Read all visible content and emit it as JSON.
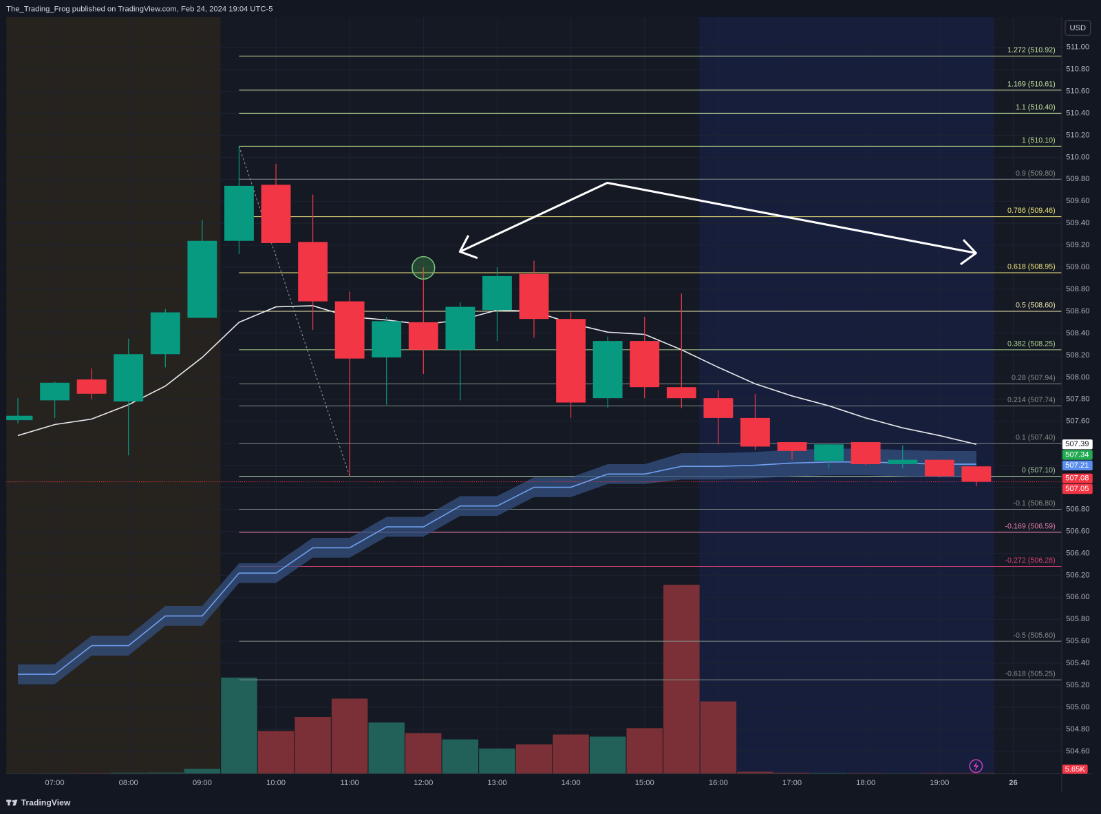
{
  "chart_data": {
    "type": "candlestick",
    "title": "The_Trading_Frog published on TradingView.com, Feb 24, 2024 19:04 UTC-5",
    "brand": "TradingView",
    "currency": "USD",
    "x": [
      6.5,
      7,
      7.5,
      8,
      8.5,
      9,
      9.5,
      10,
      10.5,
      11,
      11.5,
      12,
      12.5,
      13,
      13.5,
      14,
      14.5,
      15,
      15.5,
      16,
      16.5,
      17,
      17.5,
      18,
      18.5,
      19,
      19.5
    ],
    "open": [
      507.61,
      507.79,
      507.98,
      507.78,
      508.21,
      508.54,
      509.24,
      509.75,
      509.23,
      508.69,
      508.18,
      508.5,
      508.25,
      508.61,
      508.94,
      508.53,
      507.81,
      508.33,
      507.91,
      507.81,
      507.63,
      507.41,
      507.24,
      507.41,
      507.21,
      507.25,
      507.19
    ],
    "high": [
      507.81,
      507.96,
      508.08,
      508.35,
      508.62,
      509.43,
      510.1,
      509.94,
      509.66,
      508.78,
      508.55,
      509.0,
      508.68,
      509.0,
      509.06,
      508.59,
      508.37,
      508.55,
      508.76,
      507.88,
      507.85,
      507.41,
      507.39,
      507.41,
      507.38,
      507.25,
      507.19
    ],
    "low": [
      507.58,
      507.63,
      507.8,
      507.29,
      508.09,
      508.54,
      509.12,
      509.22,
      508.43,
      507.1,
      507.75,
      508.03,
      507.79,
      508.33,
      508.36,
      507.63,
      507.72,
      507.81,
      507.72,
      507.39,
      507.34,
      507.25,
      507.17,
      507.2,
      507.17,
      507.09,
      507.01
    ],
    "close": [
      507.65,
      507.95,
      507.85,
      508.21,
      508.59,
      509.24,
      509.74,
      509.22,
      508.69,
      508.17,
      508.51,
      508.25,
      508.64,
      508.92,
      508.53,
      507.77,
      508.33,
      507.91,
      507.81,
      507.63,
      507.37,
      507.33,
      507.39,
      507.21,
      507.25,
      507.1,
      507.05
    ],
    "up_color": "#089981",
    "down_color": "#f23645",
    "volume": {
      "values": [
        2000,
        3000,
        5000,
        8000,
        9000,
        35000,
        685000,
        305000,
        405000,
        535000,
        365000,
        290000,
        245000,
        180000,
        210000,
        280000,
        265000,
        325000,
        1345000,
        515000,
        15000,
        8000,
        6000,
        5000,
        4000,
        6000,
        5650
      ],
      "ylim": [
        0,
        5385000
      ],
      "up_color": "#22615a",
      "down_color": "#7a3036",
      "last_label": "5.65K",
      "last_label_color": "#f23645"
    },
    "lines": [
      {
        "color": "#e8e8ec",
        "values": [
          507.47,
          507.57,
          507.62,
          507.75,
          507.92,
          508.18,
          508.5,
          508.64,
          508.65,
          508.55,
          508.52,
          508.48,
          508.52,
          508.61,
          508.6,
          508.49,
          508.41,
          508.39,
          508.25,
          508.09,
          507.94,
          507.83,
          507.74,
          507.63,
          507.54,
          507.47,
          507.39
        ]
      },
      {
        "color": "#6f9ff0",
        "values": [
          505.3,
          505.3,
          505.56,
          505.56,
          505.83,
          505.83,
          506.22,
          506.22,
          506.45,
          506.45,
          506.64,
          506.64,
          506.83,
          506.83,
          507.0,
          507.0,
          507.12,
          507.12,
          507.19,
          507.19,
          507.2,
          507.22,
          507.23,
          507.23,
          507.22,
          507.21,
          507.21
        ]
      }
    ],
    "band": {
      "color": "#34507f",
      "upper": [
        505.39,
        505.39,
        505.65,
        505.65,
        505.92,
        505.92,
        506.31,
        506.31,
        506.54,
        506.54,
        506.73,
        506.73,
        506.92,
        506.92,
        507.09,
        507.09,
        507.21,
        507.21,
        507.31,
        507.31,
        507.32,
        507.34,
        507.35,
        507.35,
        507.34,
        507.33,
        507.33
      ],
      "lower": [
        505.21,
        505.21,
        505.47,
        505.47,
        505.74,
        505.74,
        506.13,
        506.13,
        506.36,
        506.36,
        506.55,
        506.55,
        506.74,
        506.74,
        506.91,
        506.91,
        507.03,
        507.03,
        507.07,
        507.07,
        507.08,
        507.1,
        507.11,
        507.11,
        507.1,
        507.09,
        507.09
      ]
    },
    "fib_levels": [
      {
        "label": "1.272 (510.92)",
        "value": 510.92,
        "color": "#c5e3a0"
      },
      {
        "label": "1.169 (510.61)",
        "value": 510.61,
        "color": "#c5e3a0"
      },
      {
        "label": "1.1 (510.40)",
        "value": 510.4,
        "color": "#c5e3a0"
      },
      {
        "label": "1 (510.10)",
        "value": 510.1,
        "color": "#b8dc8c"
      },
      {
        "label": "0.9 (509.80)",
        "value": 509.8,
        "color": "#7f8f86"
      },
      {
        "label": "0.786 (509.46)",
        "value": 509.46,
        "color": "#ece27a"
      },
      {
        "label": "0.618 (508.95)",
        "value": 508.95,
        "color": "#ece27a"
      },
      {
        "label": "0.5 (508.60)",
        "value": 508.6,
        "color": "#f2eab0"
      },
      {
        "label": "0.382 (508.25)",
        "value": 508.25,
        "color": "#a9cf8c"
      },
      {
        "label": "0.28 (507.94)",
        "value": 507.94,
        "color": "#7f8f86"
      },
      {
        "label": "0.214 (507.74)",
        "value": 507.74,
        "color": "#7f8f86"
      },
      {
        "label": "0.1 (507.40)",
        "value": 507.4,
        "color": "#7f8f86"
      },
      {
        "label": "0 (507.10)",
        "value": 507.1,
        "color": "#a9c9a0"
      },
      {
        "label": "-0.1 (506.80)",
        "value": 506.8,
        "color": "#7f8f86"
      },
      {
        "label": "-0.169 (506.59)",
        "value": 506.59,
        "color": "#e27fa3"
      },
      {
        "label": "-0.272 (506.28)",
        "value": 506.28,
        "color": "#d0406f"
      },
      {
        "label": "-0.5 (505.60)",
        "value": 505.6,
        "color": "#7f8f86"
      },
      {
        "label": "-0.618 (505.25)",
        "value": 505.25,
        "color": "#7f8f86"
      }
    ],
    "fib_anchor": {
      "x": [
        9.5,
        11
      ],
      "y": [
        510.1,
        507.1
      ],
      "color": "#9598a1"
    },
    "price_labels": [
      {
        "value": 507.39,
        "color": "#ffffff",
        "text_color": "#131722"
      },
      {
        "value": 507.34,
        "color": "#22ab52",
        "text_color": "#ffffff"
      },
      {
        "value": 507.21,
        "color": "#5b8def",
        "text_color": "#ffffff"
      },
      {
        "value": 507.08,
        "color": "#f23645",
        "text_color": "#ffffff"
      },
      {
        "value": 507.05,
        "color": "#f23645",
        "text_color": "#ffffff"
      }
    ],
    "xlim": [
      6.343,
      20.657
    ],
    "ylim": [
      504.395,
      511.275
    ],
    "xticks": [
      {
        "value": 7,
        "label": "07:00"
      },
      {
        "value": 8,
        "label": "08:00"
      },
      {
        "value": 9,
        "label": "09:00"
      },
      {
        "value": 10,
        "label": "10:00"
      },
      {
        "value": 11,
        "label": "11:00"
      },
      {
        "value": 12,
        "label": "12:00"
      },
      {
        "value": 13,
        "label": "13:00"
      },
      {
        "value": 14,
        "label": "14:00"
      },
      {
        "value": 15,
        "label": "15:00"
      },
      {
        "value": 16,
        "label": "16:00"
      },
      {
        "value": 17,
        "label": "17:00"
      },
      {
        "value": 18,
        "label": "18:00"
      },
      {
        "value": 19,
        "label": "19:00"
      },
      {
        "value": 20,
        "label": "26"
      }
    ],
    "yticks": [
      {
        "value": 504.6,
        "label": "504.60"
      },
      {
        "value": 504.8,
        "label": "504.80"
      },
      {
        "value": 505,
        "label": "505.00"
      },
      {
        "value": 505.2,
        "label": "505.20"
      },
      {
        "value": 505.4,
        "label": "505.40"
      },
      {
        "value": 505.6,
        "label": "505.60"
      },
      {
        "value": 505.8,
        "label": "505.80"
      },
      {
        "value": 506,
        "label": "506.00"
      },
      {
        "value": 506.2,
        "label": "506.20"
      },
      {
        "value": 506.4,
        "label": "506.40"
      },
      {
        "value": 506.6,
        "label": "506.60"
      },
      {
        "value": 506.8,
        "label": "506.80"
      },
      {
        "value": 507,
        "label": "507.00"
      },
      {
        "value": 507.2,
        "label": "507.20"
      },
      {
        "value": 507.4,
        "label": "507.40"
      },
      {
        "value": 507.6,
        "label": "507.60"
      },
      {
        "value": 507.8,
        "label": "507.80"
      },
      {
        "value": 508,
        "label": "508.00"
      },
      {
        "value": 508.2,
        "label": "508.20"
      },
      {
        "value": 508.4,
        "label": "508.40"
      },
      {
        "value": 508.6,
        "label": "508.60"
      },
      {
        "value": 508.8,
        "label": "508.80"
      },
      {
        "value": 509,
        "label": "509.00"
      },
      {
        "value": 509.2,
        "label": "509.20"
      },
      {
        "value": 509.4,
        "label": "509.40"
      },
      {
        "value": 509.6,
        "label": "509.60"
      },
      {
        "value": 509.8,
        "label": "509.80"
      },
      {
        "value": 510,
        "label": "510.00"
      },
      {
        "value": 510.2,
        "label": "510.20"
      },
      {
        "value": 510.4,
        "label": "510.40"
      },
      {
        "value": 510.6,
        "label": "510.60"
      },
      {
        "value": 510.8,
        "label": "510.80"
      },
      {
        "value": 511,
        "label": "511.00"
      }
    ],
    "grid": true
  }
}
